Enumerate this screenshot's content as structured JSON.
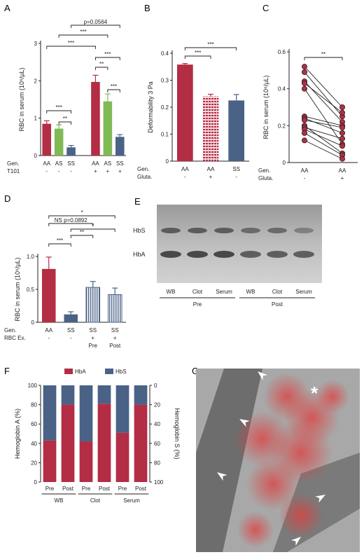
{
  "colors": {
    "aa": "#b32d45",
    "as": "#7fba55",
    "ss": "#4b6287",
    "hba": "#b32d45",
    "hbs": "#4b6287"
  },
  "panels": {
    "a": "A",
    "b": "B",
    "c": "C",
    "d": "D",
    "e": "E",
    "f": "F",
    "g": "G"
  },
  "chart_data": [
    {
      "panel": "A",
      "type": "bar",
      "ylabel": "RBC in serum (10⁶/µL)",
      "ylim": [
        0,
        3
      ],
      "yticks": [
        "0",
        "1",
        "2",
        "3"
      ],
      "categories": [
        "AA",
        "AS",
        "SS",
        "AA",
        "AS",
        "SS"
      ],
      "values": [
        0.85,
        0.72,
        0.22,
        1.97,
        1.45,
        0.5
      ],
      "errors": [
        0.08,
        0.1,
        0.05,
        0.18,
        0.2,
        0.06
      ],
      "rows": [
        {
          "label": "Gen.",
          "values": [
            "AA",
            "AS",
            "SS",
            "AA",
            "AS",
            "SS"
          ]
        },
        {
          "label": "T101",
          "values": [
            "-",
            "-",
            "-",
            "+",
            "+",
            "+"
          ]
        }
      ],
      "significance": [
        {
          "from": 0,
          "to": 2,
          "label": "***"
        },
        {
          "from": 1,
          "to": 2,
          "label": "**"
        },
        {
          "from": 3,
          "to": 4,
          "label": "**"
        },
        {
          "from": 4,
          "to": 5,
          "label": "***"
        },
        {
          "from": 3,
          "to": 5,
          "label": "***"
        },
        {
          "from": 0,
          "to": 3,
          "label": "***"
        },
        {
          "from": 1,
          "to": 4,
          "label": "***"
        },
        {
          "from": 2,
          "to": 5,
          "label": "p=0.0564"
        }
      ]
    },
    {
      "panel": "B",
      "type": "bar",
      "ylabel": "Deformability 3 Pa",
      "ylim": [
        0,
        0.4
      ],
      "yticks": [
        "0",
        "0.1",
        "0.2",
        "0.3",
        "0.4"
      ],
      "categories": [
        "AA",
        "AA",
        "SS"
      ],
      "values": [
        0.358,
        0.24,
        0.225
      ],
      "errors": [
        0.004,
        0.008,
        0.022
      ],
      "rows": [
        {
          "label": "Gen.",
          "values": [
            "AA",
            "AA",
            "SS"
          ]
        },
        {
          "label": "Gluta.",
          "values": [
            "-",
            "+",
            "-"
          ]
        }
      ],
      "significance": [
        {
          "from": 0,
          "to": 1,
          "label": "***"
        },
        {
          "from": 0,
          "to": 2,
          "label": "***"
        }
      ]
    },
    {
      "panel": "C",
      "type": "scatter",
      "ylabel": "RBC in serum (10⁶/µL)",
      "ylim": [
        0,
        0.6
      ],
      "yticks": [
        "0",
        "0.2",
        "0.4",
        "0.6"
      ],
      "categories": [
        "AA",
        "AA"
      ],
      "pairs": [
        [
          0.52,
          0.3
        ],
        [
          0.49,
          0.25
        ],
        [
          0.44,
          0.22
        ],
        [
          0.43,
          0.27
        ],
        [
          0.4,
          0.1
        ],
        [
          0.25,
          0.2
        ],
        [
          0.24,
          0.16
        ],
        [
          0.23,
          0.19
        ],
        [
          0.2,
          0.05
        ],
        [
          0.19,
          0.13
        ],
        [
          0.18,
          0.09
        ],
        [
          0.16,
          0.04
        ],
        [
          0.12,
          0.02
        ]
      ],
      "rows": [
        {
          "label": "Gen.",
          "values": [
            "AA",
            "AA"
          ]
        },
        {
          "label": "Gluta.",
          "values": [
            "-",
            "+"
          ]
        }
      ],
      "significance": [
        {
          "from": 0,
          "to": 1,
          "label": "**"
        }
      ]
    },
    {
      "panel": "D",
      "type": "bar",
      "ylabel": "RBC in serum (10⁶/µL)",
      "ylim": [
        0,
        1.0
      ],
      "yticks": [
        "0",
        "0.5",
        "1.0"
      ],
      "categories": [
        "AA",
        "SS",
        "SS",
        "SS"
      ],
      "values": [
        0.81,
        0.12,
        0.53,
        0.42
      ],
      "errors": [
        0.18,
        0.04,
        0.09,
        0.1
      ],
      "rows": [
        {
          "label": "Gen.",
          "values": [
            "AA",
            "SS",
            "SS",
            "SS"
          ]
        },
        {
          "label": "RBC Ex.",
          "values": [
            "-",
            "-",
            "+",
            "+"
          ]
        },
        {
          "label": "",
          "values": [
            "",
            "",
            "Pre",
            "Post"
          ]
        }
      ],
      "significance": [
        {
          "from": 0,
          "to": 1,
          "label": "***"
        },
        {
          "from": 1,
          "to": 2,
          "label": "**"
        },
        {
          "from": 1,
          "to": 3,
          "label": "*"
        },
        {
          "from": 0,
          "to": 2,
          "label": "NS p=0.0892"
        },
        {
          "from": 0,
          "to": 3,
          "label": "*"
        }
      ]
    },
    {
      "panel": "F",
      "type": "bar",
      "stacked": true,
      "ylabel": "Hemoglobin A (%)",
      "y2label": "Hemoglobin S (%)",
      "ylim": [
        0,
        100
      ],
      "yticks": [
        "0",
        "20",
        "40",
        "60",
        "80",
        "100"
      ],
      "y2ticks": [
        "0",
        "20",
        "40",
        "60",
        "80",
        "100"
      ],
      "categories": [
        "Pre",
        "Post",
        "Pre",
        "Post",
        "Pre",
        "Post"
      ],
      "groups": [
        "WB",
        "Clot",
        "Serum"
      ],
      "series": [
        {
          "name": "HbA",
          "values": [
            43,
            80,
            42,
            81,
            51,
            80
          ]
        },
        {
          "name": "HbS",
          "values": [
            57,
            20,
            58,
            19,
            49,
            20
          ]
        }
      ]
    }
  ],
  "gel": {
    "bands": [
      "HbS",
      "HbA"
    ],
    "lanes": [
      "WB",
      "Clot",
      "Serum",
      "WB",
      "Clot",
      "Serum"
    ],
    "groups": [
      "Pre",
      "Post"
    ]
  },
  "micrograph": {
    "asterisk": "*"
  }
}
